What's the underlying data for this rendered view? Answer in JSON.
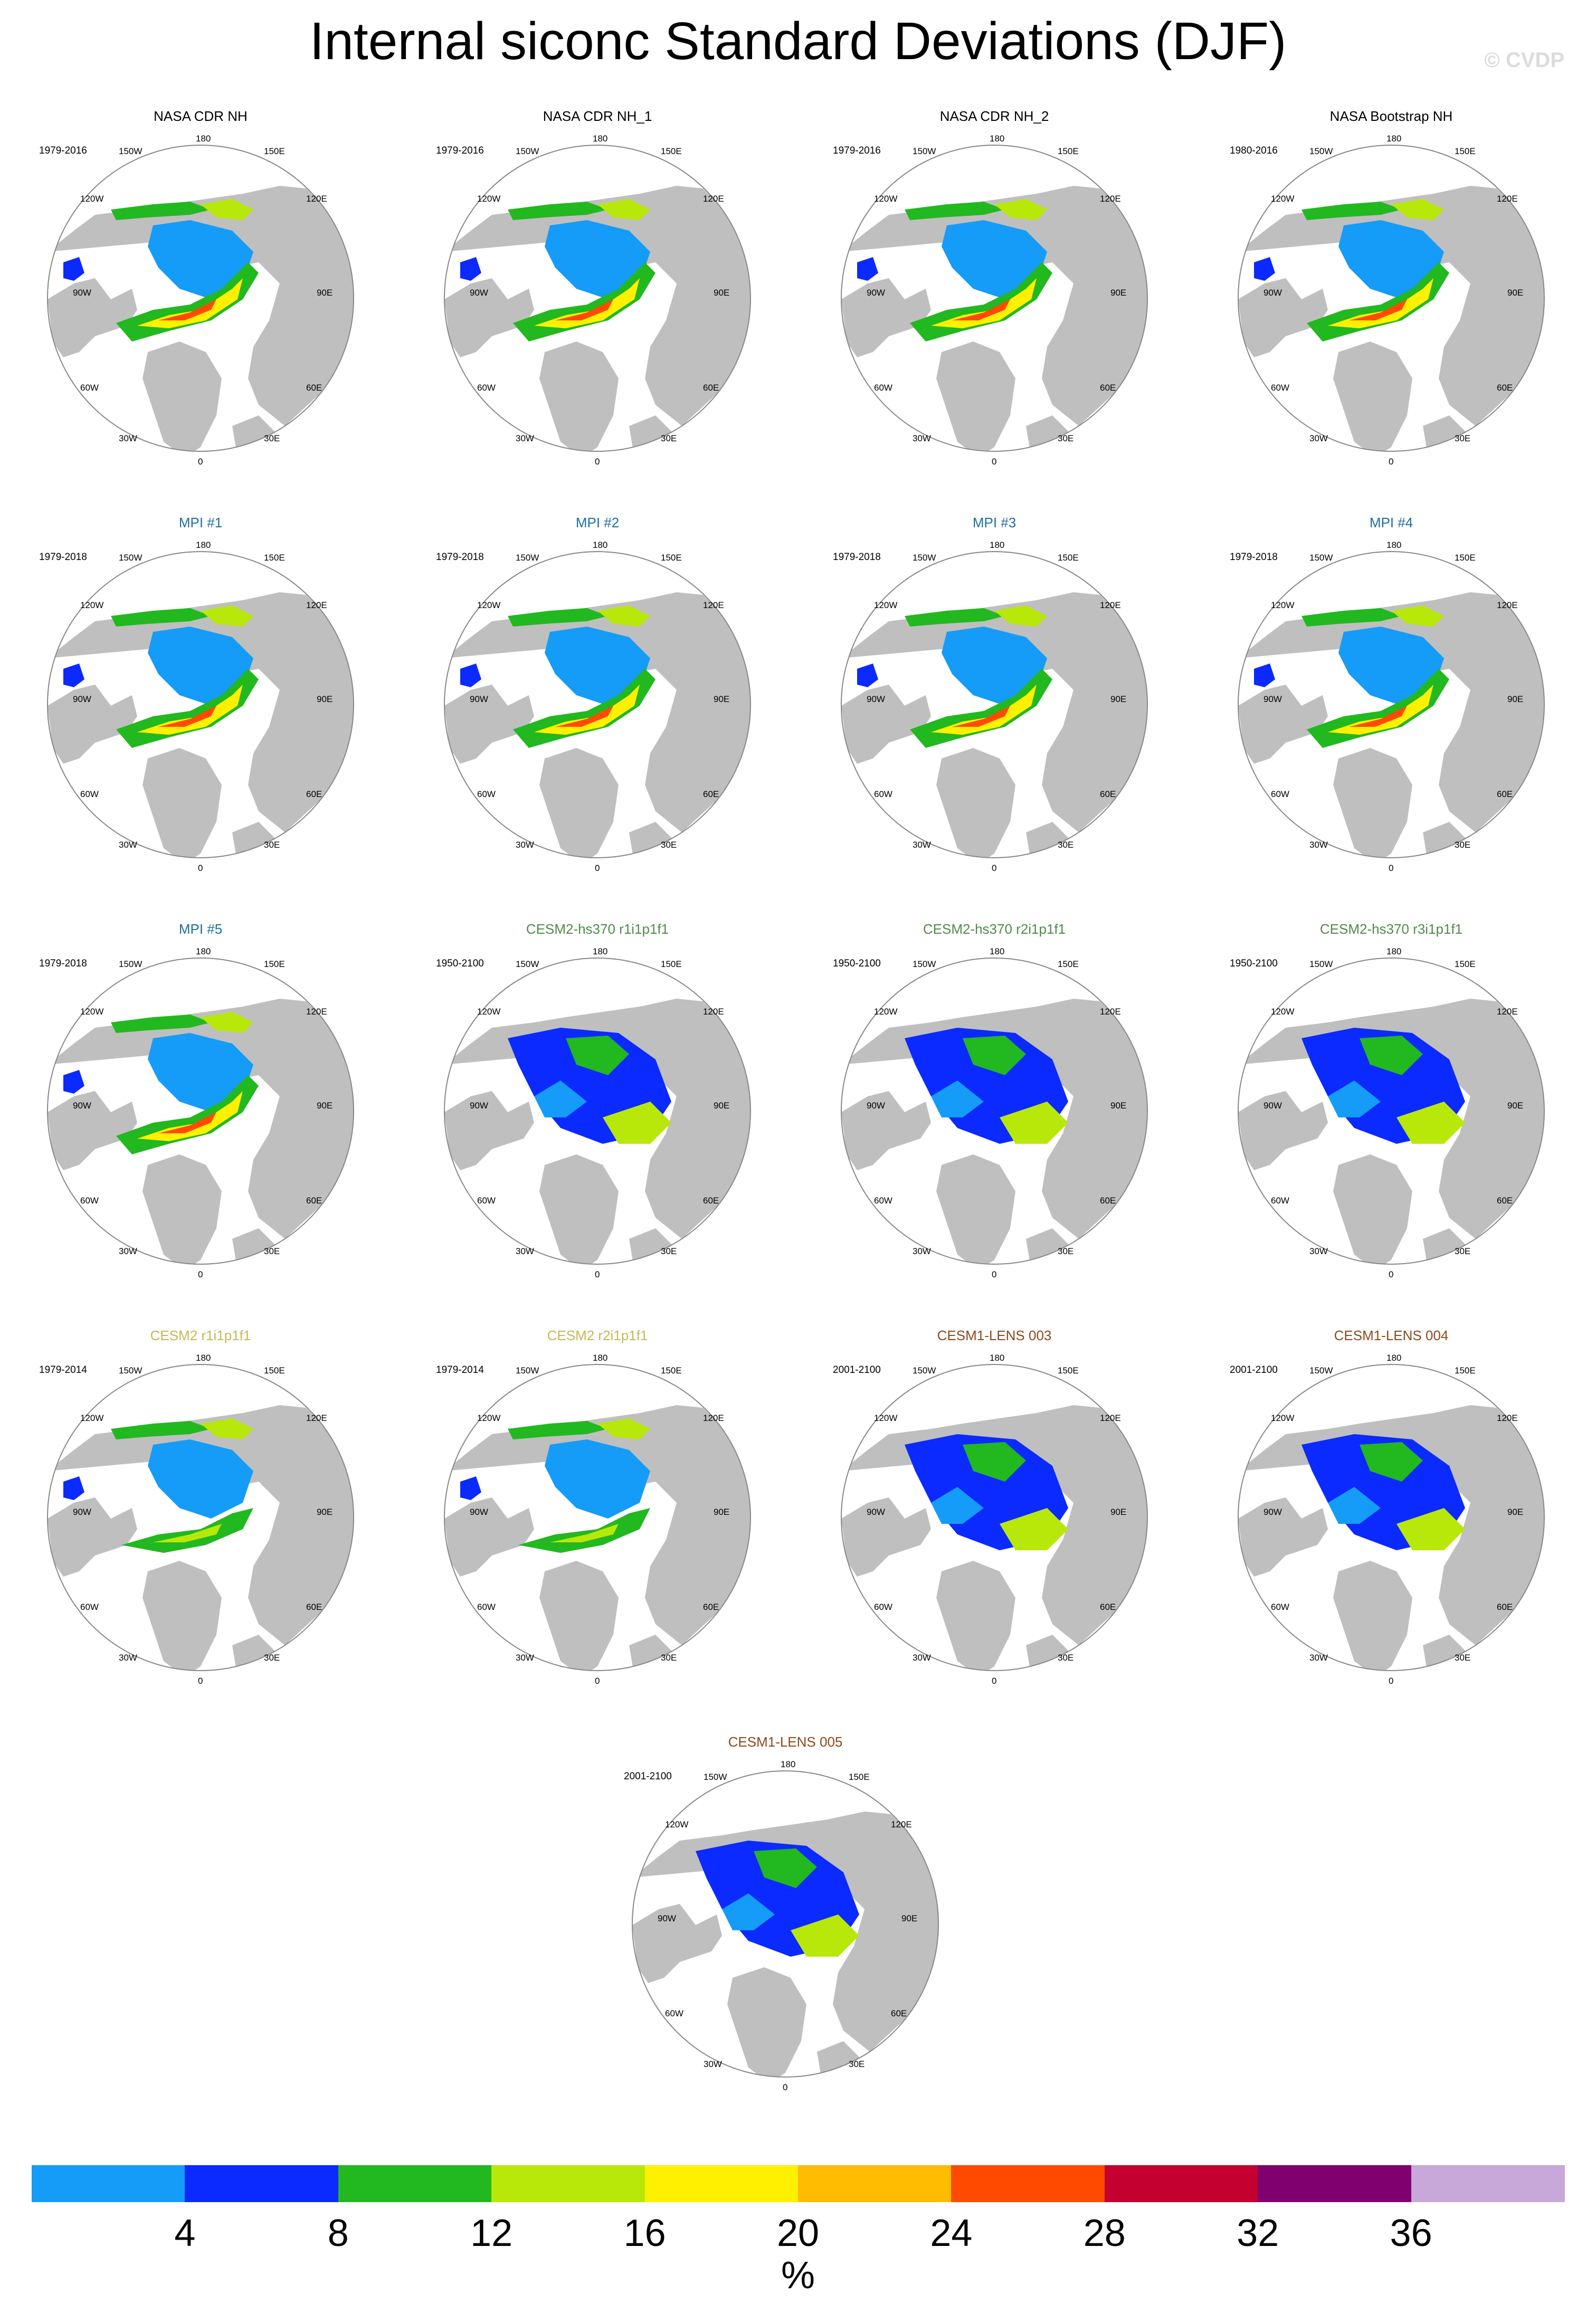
{
  "title": "Internal siconc Standard Deviations (DJF)",
  "copyright": "© CVDP",
  "lon_labels": {
    "top": "180",
    "bottom": "0",
    "tl": "150W",
    "tr": "150E",
    "ul": "120W",
    "ur": "120E",
    "ml": "90W",
    "mr": "90E",
    "ll": "60W",
    "lr": "60E",
    "bl": "30W",
    "br": "30E"
  },
  "colors": {
    "land": "#bfbfbf",
    "ocean": "#ffffff",
    "ice_core": "#149cf8",
    "obs_title": "#000000",
    "mpi_title": "#1f6fa0",
    "cesm2hs_title": "#4f8c48",
    "cesm2_title": "#c8b854",
    "lens_title": "#8c4a1a"
  },
  "panels": [
    {
      "title": "NASA CDR NH",
      "period": "1979-2016",
      "group": "obs",
      "type": "obs"
    },
    {
      "title": "NASA CDR NH_1",
      "period": "1979-2016",
      "group": "obs",
      "type": "obs"
    },
    {
      "title": "NASA CDR NH_2",
      "period": "1979-2016",
      "group": "obs",
      "type": "obs"
    },
    {
      "title": "NASA Bootstrap NH",
      "period": "1980-2016",
      "group": "obs",
      "type": "obs"
    },
    {
      "title": "MPI #1",
      "period": "1979-2018",
      "group": "mpi",
      "type": "mpi"
    },
    {
      "title": "MPI #2",
      "period": "1979-2018",
      "group": "mpi",
      "type": "mpi"
    },
    {
      "title": "MPI #3",
      "period": "1979-2018",
      "group": "mpi",
      "type": "mpi"
    },
    {
      "title": "MPI #4",
      "period": "1979-2018",
      "group": "mpi",
      "type": "mpi"
    },
    {
      "title": "MPI #5",
      "period": "1979-2018",
      "group": "mpi",
      "type": "mpi"
    },
    {
      "title": "CESM2-hs370 r1i1p1f1",
      "period": "1950-2100",
      "group": "cesm2hs",
      "type": "future"
    },
    {
      "title": "CESM2-hs370 r2i1p1f1",
      "period": "1950-2100",
      "group": "cesm2hs",
      "type": "future"
    },
    {
      "title": "CESM2-hs370 r3i1p1f1",
      "period": "1950-2100",
      "group": "cesm2hs",
      "type": "future"
    },
    {
      "title": "CESM2 r1i1p1f1",
      "period": "1979-2014",
      "group": "cesm2",
      "type": "cesm2"
    },
    {
      "title": "CESM2 r2i1p1f1",
      "period": "1979-2014",
      "group": "cesm2",
      "type": "cesm2"
    },
    {
      "title": "CESM1-LENS 003",
      "period": "2001-2100",
      "group": "lens",
      "type": "future"
    },
    {
      "title": "CESM1-LENS 004",
      "period": "2001-2100",
      "group": "lens",
      "type": "future"
    },
    {
      "title": "CESM1-LENS 005",
      "period": "2001-2100",
      "group": "lens",
      "type": "future"
    }
  ],
  "colorbar": {
    "colors": [
      "#149cf8",
      "#0a2aff",
      "#22b81f",
      "#b8e80a",
      "#fff000",
      "#ffbc00",
      "#ff4a00",
      "#c40030",
      "#800070",
      "#c8a8d8"
    ],
    "ticks": [
      "4",
      "8",
      "12",
      "16",
      "20",
      "24",
      "28",
      "32",
      "36"
    ],
    "units": "%"
  }
}
